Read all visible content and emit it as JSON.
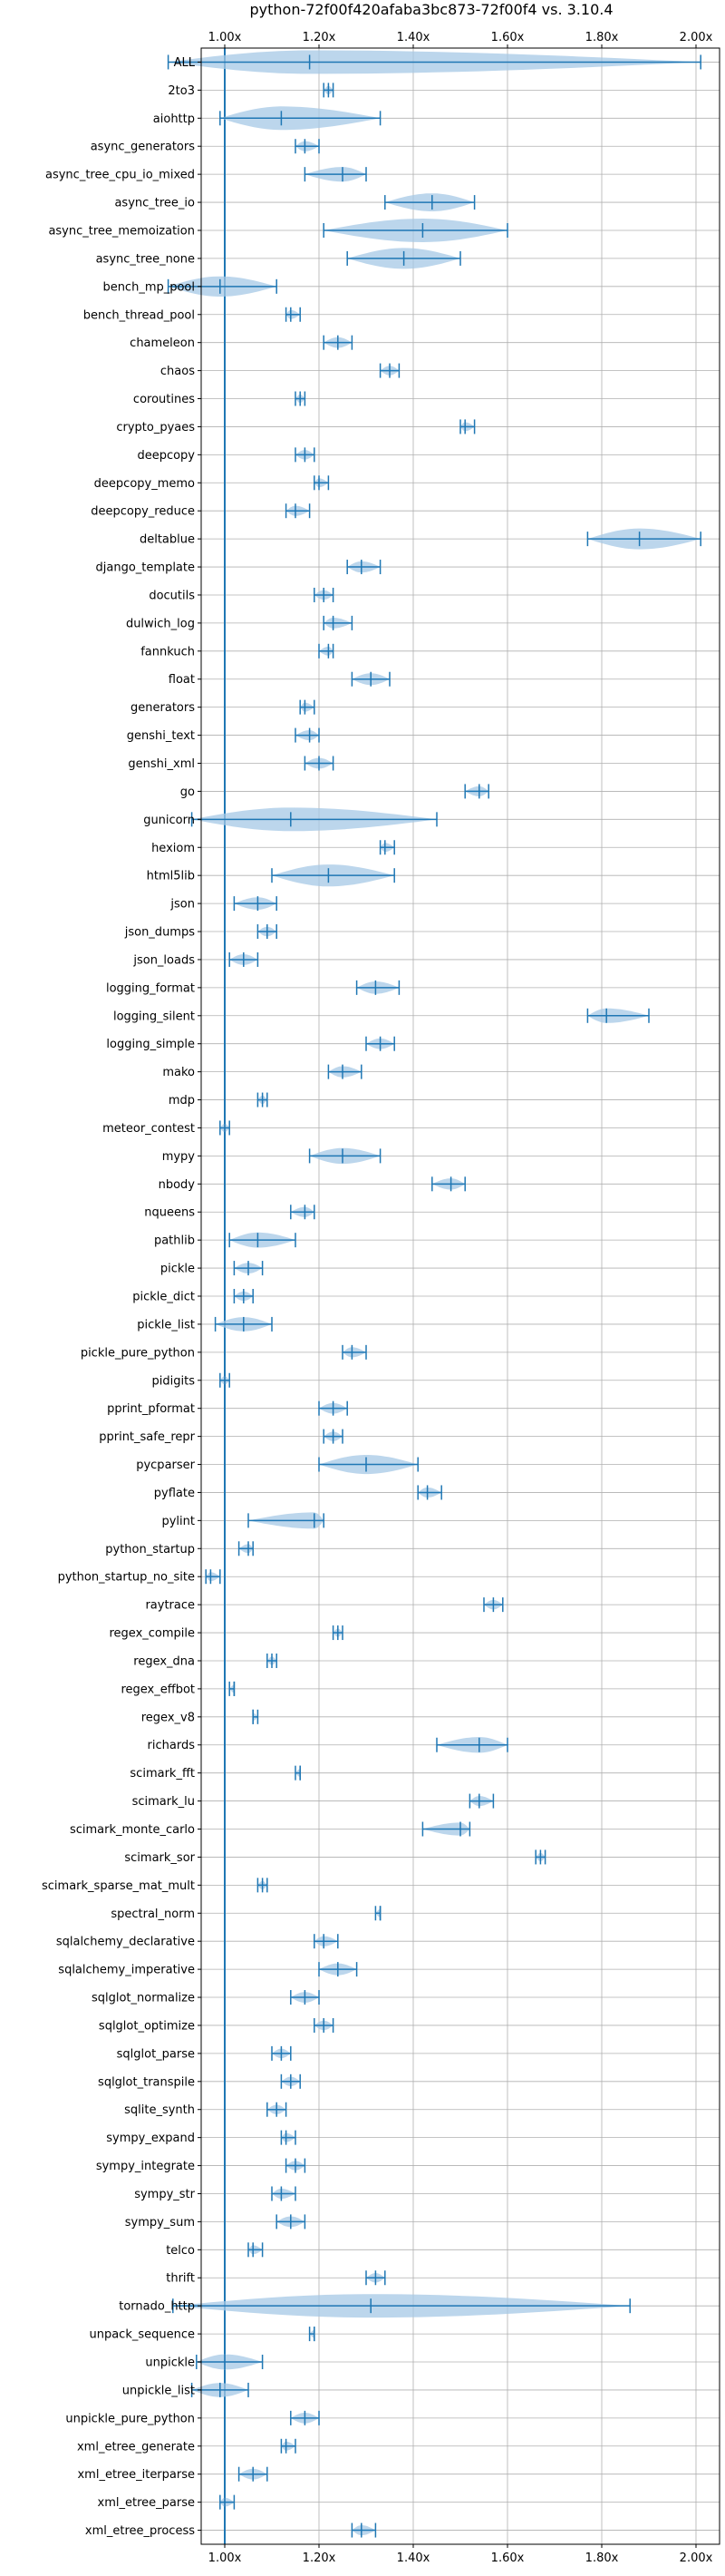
{
  "chart_data": {
    "type": "violin",
    "title": "python-72f00f420afaba3bc873-72f00f4 vs. 3.10.4",
    "xlabel": "",
    "ylabel": "",
    "xlim": [
      0.95,
      2.05
    ],
    "xticks": [
      1.0,
      1.2,
      1.4,
      1.6,
      1.8,
      2.0
    ],
    "xtick_labels": [
      "1.00x",
      "1.20x",
      "1.40x",
      "1.60x",
      "1.80x",
      "2.00x"
    ],
    "tick_positions": [
      "top",
      "bottom"
    ],
    "grid": true,
    "reference_line": 1.0,
    "color": "#1f77b4",
    "fill_color": "#a6c8e6",
    "benchmarks": [
      {
        "name": "ALL",
        "min": 0.88,
        "median": 1.18,
        "max": 2.01
      },
      {
        "name": "2to3",
        "min": 1.21,
        "median": 1.22,
        "max": 1.23
      },
      {
        "name": "aiohttp",
        "min": 0.99,
        "median": 1.12,
        "max": 1.33
      },
      {
        "name": "async_generators",
        "min": 1.15,
        "median": 1.17,
        "max": 1.2
      },
      {
        "name": "async_tree_cpu_io_mixed",
        "min": 1.17,
        "median": 1.25,
        "max": 1.3
      },
      {
        "name": "async_tree_io",
        "min": 1.34,
        "median": 1.44,
        "max": 1.53
      },
      {
        "name": "async_tree_memoization",
        "min": 1.21,
        "median": 1.42,
        "max": 1.6
      },
      {
        "name": "async_tree_none",
        "min": 1.26,
        "median": 1.38,
        "max": 1.5
      },
      {
        "name": "bench_mp_pool",
        "min": 0.88,
        "median": 0.99,
        "max": 1.11
      },
      {
        "name": "bench_thread_pool",
        "min": 1.13,
        "median": 1.14,
        "max": 1.16
      },
      {
        "name": "chameleon",
        "min": 1.21,
        "median": 1.24,
        "max": 1.27
      },
      {
        "name": "chaos",
        "min": 1.33,
        "median": 1.35,
        "max": 1.37
      },
      {
        "name": "coroutines",
        "min": 1.15,
        "median": 1.16,
        "max": 1.17
      },
      {
        "name": "crypto_pyaes",
        "min": 1.5,
        "median": 1.51,
        "max": 1.53
      },
      {
        "name": "deepcopy",
        "min": 1.15,
        "median": 1.17,
        "max": 1.19
      },
      {
        "name": "deepcopy_memo",
        "min": 1.19,
        "median": 1.2,
        "max": 1.22
      },
      {
        "name": "deepcopy_reduce",
        "min": 1.13,
        "median": 1.15,
        "max": 1.18
      },
      {
        "name": "deltablue",
        "min": 1.77,
        "median": 1.88,
        "max": 2.01
      },
      {
        "name": "django_template",
        "min": 1.26,
        "median": 1.29,
        "max": 1.33
      },
      {
        "name": "docutils",
        "min": 1.19,
        "median": 1.21,
        "max": 1.23
      },
      {
        "name": "dulwich_log",
        "min": 1.21,
        "median": 1.23,
        "max": 1.27
      },
      {
        "name": "fannkuch",
        "min": 1.2,
        "median": 1.22,
        "max": 1.23
      },
      {
        "name": "float",
        "min": 1.27,
        "median": 1.31,
        "max": 1.35
      },
      {
        "name": "generators",
        "min": 1.16,
        "median": 1.17,
        "max": 1.19
      },
      {
        "name": "genshi_text",
        "min": 1.15,
        "median": 1.18,
        "max": 1.2
      },
      {
        "name": "genshi_xml",
        "min": 1.17,
        "median": 1.2,
        "max": 1.23
      },
      {
        "name": "go",
        "min": 1.51,
        "median": 1.54,
        "max": 1.56
      },
      {
        "name": "gunicorn",
        "min": 0.93,
        "median": 1.14,
        "max": 1.45
      },
      {
        "name": "hexiom",
        "min": 1.33,
        "median": 1.34,
        "max": 1.36
      },
      {
        "name": "html5lib",
        "min": 1.1,
        "median": 1.22,
        "max": 1.36
      },
      {
        "name": "json",
        "min": 1.02,
        "median": 1.07,
        "max": 1.11
      },
      {
        "name": "json_dumps",
        "min": 1.07,
        "median": 1.09,
        "max": 1.11
      },
      {
        "name": "json_loads",
        "min": 1.01,
        "median": 1.04,
        "max": 1.07
      },
      {
        "name": "logging_format",
        "min": 1.28,
        "median": 1.32,
        "max": 1.37
      },
      {
        "name": "logging_silent",
        "min": 1.77,
        "median": 1.81,
        "max": 1.9
      },
      {
        "name": "logging_simple",
        "min": 1.3,
        "median": 1.33,
        "max": 1.36
      },
      {
        "name": "mako",
        "min": 1.22,
        "median": 1.25,
        "max": 1.29
      },
      {
        "name": "mdp",
        "min": 1.07,
        "median": 1.08,
        "max": 1.09
      },
      {
        "name": "meteor_contest",
        "min": 0.99,
        "median": 1.0,
        "max": 1.01
      },
      {
        "name": "mypy",
        "min": 1.18,
        "median": 1.25,
        "max": 1.33
      },
      {
        "name": "nbody",
        "min": 1.44,
        "median": 1.48,
        "max": 1.51
      },
      {
        "name": "nqueens",
        "min": 1.14,
        "median": 1.17,
        "max": 1.19
      },
      {
        "name": "pathlib",
        "min": 1.01,
        "median": 1.07,
        "max": 1.15
      },
      {
        "name": "pickle",
        "min": 1.02,
        "median": 1.05,
        "max": 1.08
      },
      {
        "name": "pickle_dict",
        "min": 1.02,
        "median": 1.04,
        "max": 1.06
      },
      {
        "name": "pickle_list",
        "min": 0.98,
        "median": 1.04,
        "max": 1.1
      },
      {
        "name": "pickle_pure_python",
        "min": 1.25,
        "median": 1.27,
        "max": 1.3
      },
      {
        "name": "pidigits",
        "min": 0.99,
        "median": 1.0,
        "max": 1.01
      },
      {
        "name": "pprint_pformat",
        "min": 1.2,
        "median": 1.23,
        "max": 1.26
      },
      {
        "name": "pprint_safe_repr",
        "min": 1.21,
        "median": 1.23,
        "max": 1.25
      },
      {
        "name": "pycparser",
        "min": 1.2,
        "median": 1.3,
        "max": 1.41
      },
      {
        "name": "pyflate",
        "min": 1.41,
        "median": 1.43,
        "max": 1.46
      },
      {
        "name": "pylint",
        "min": 1.05,
        "median": 1.19,
        "max": 1.21
      },
      {
        "name": "python_startup",
        "min": 1.03,
        "median": 1.05,
        "max": 1.06
      },
      {
        "name": "python_startup_no_site",
        "min": 0.96,
        "median": 0.97,
        "max": 0.99
      },
      {
        "name": "raytrace",
        "min": 1.55,
        "median": 1.57,
        "max": 1.59
      },
      {
        "name": "regex_compile",
        "min": 1.23,
        "median": 1.24,
        "max": 1.25
      },
      {
        "name": "regex_dna",
        "min": 1.09,
        "median": 1.1,
        "max": 1.11
      },
      {
        "name": "regex_effbot",
        "min": 1.01,
        "median": 1.02,
        "max": 1.02
      },
      {
        "name": "regex_v8",
        "min": 1.06,
        "median": 1.06,
        "max": 1.07
      },
      {
        "name": "richards",
        "min": 1.45,
        "median": 1.54,
        "max": 1.6
      },
      {
        "name": "scimark_fft",
        "min": 1.15,
        "median": 1.16,
        "max": 1.16
      },
      {
        "name": "scimark_lu",
        "min": 1.52,
        "median": 1.54,
        "max": 1.57
      },
      {
        "name": "scimark_monte_carlo",
        "min": 1.42,
        "median": 1.5,
        "max": 1.52
      },
      {
        "name": "scimark_sor",
        "min": 1.66,
        "median": 1.67,
        "max": 1.68
      },
      {
        "name": "scimark_sparse_mat_mult",
        "min": 1.07,
        "median": 1.08,
        "max": 1.09
      },
      {
        "name": "spectral_norm",
        "min": 1.32,
        "median": 1.33,
        "max": 1.33
      },
      {
        "name": "sqlalchemy_declarative",
        "min": 1.19,
        "median": 1.21,
        "max": 1.24
      },
      {
        "name": "sqlalchemy_imperative",
        "min": 1.2,
        "median": 1.24,
        "max": 1.28
      },
      {
        "name": "sqlglot_normalize",
        "min": 1.14,
        "median": 1.17,
        "max": 1.2
      },
      {
        "name": "sqlglot_optimize",
        "min": 1.19,
        "median": 1.21,
        "max": 1.23
      },
      {
        "name": "sqlglot_parse",
        "min": 1.1,
        "median": 1.12,
        "max": 1.14
      },
      {
        "name": "sqlglot_transpile",
        "min": 1.12,
        "median": 1.14,
        "max": 1.16
      },
      {
        "name": "sqlite_synth",
        "min": 1.09,
        "median": 1.11,
        "max": 1.13
      },
      {
        "name": "sympy_expand",
        "min": 1.12,
        "median": 1.13,
        "max": 1.15
      },
      {
        "name": "sympy_integrate",
        "min": 1.13,
        "median": 1.15,
        "max": 1.17
      },
      {
        "name": "sympy_str",
        "min": 1.1,
        "median": 1.12,
        "max": 1.15
      },
      {
        "name": "sympy_sum",
        "min": 1.11,
        "median": 1.14,
        "max": 1.17
      },
      {
        "name": "telco",
        "min": 1.05,
        "median": 1.06,
        "max": 1.08
      },
      {
        "name": "thrift",
        "min": 1.3,
        "median": 1.32,
        "max": 1.34
      },
      {
        "name": "tornado_http",
        "min": 0.89,
        "median": 1.31,
        "max": 1.86
      },
      {
        "name": "unpack_sequence",
        "min": 1.18,
        "median": 1.19,
        "max": 1.19
      },
      {
        "name": "unpickle",
        "min": 0.94,
        "median": 1.0,
        "max": 1.08
      },
      {
        "name": "unpickle_list",
        "min": 0.93,
        "median": 0.99,
        "max": 1.05
      },
      {
        "name": "unpickle_pure_python",
        "min": 1.14,
        "median": 1.17,
        "max": 1.2
      },
      {
        "name": "xml_etree_generate",
        "min": 1.12,
        "median": 1.13,
        "max": 1.15
      },
      {
        "name": "xml_etree_iterparse",
        "min": 1.03,
        "median": 1.06,
        "max": 1.09
      },
      {
        "name": "xml_etree_parse",
        "min": 0.99,
        "median": 1.0,
        "max": 1.02
      },
      {
        "name": "xml_etree_process",
        "min": 1.27,
        "median": 1.29,
        "max": 1.32
      }
    ]
  }
}
